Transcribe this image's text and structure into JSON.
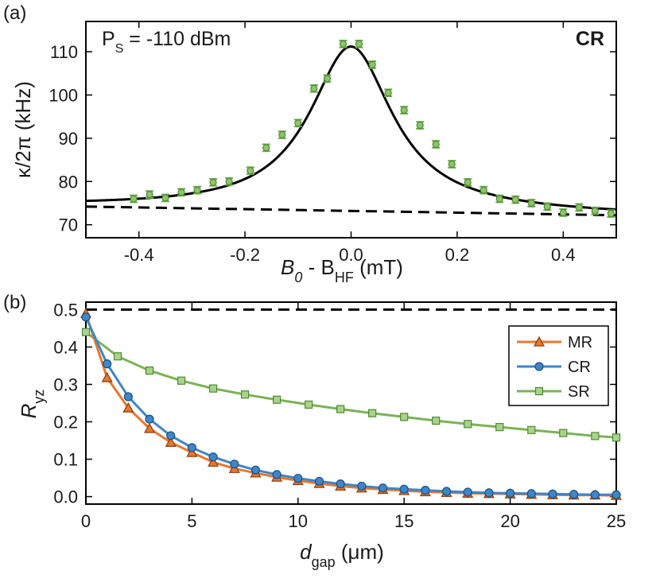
{
  "chart_data": [
    {
      "panel": "(a)",
      "type": "scatter",
      "annotation_left": "P",
      "annotation_left_sub": "S",
      "annotation_left_rest": " = -110 dBm",
      "annotation_right": "CR",
      "xlabel_main": "B",
      "xlabel_main_sub": "0",
      "xlabel_mid": " - B",
      "xlabel_mid_sub": "HF",
      "xlabel_unit": " (mT)",
      "ylabel": "κ/2π (kHz)",
      "xlim": [
        -0.5,
        0.5
      ],
      "ylim": [
        67,
        117
      ],
      "xticks": [
        -0.4,
        -0.2,
        0.0,
        0.2,
        0.4
      ],
      "xtick_labels": [
        "-0.4",
        "-0.2",
        "0.0",
        "0.2",
        "0.4"
      ],
      "yticks": [
        70,
        80,
        90,
        100,
        110
      ],
      "ytick_labels": [
        "70",
        "80",
        "90",
        "100",
        "110"
      ],
      "points": {
        "color": "#6aaa4a",
        "x": [
          -0.41,
          -0.38,
          -0.35,
          -0.32,
          -0.29,
          -0.26,
          -0.23,
          -0.19,
          -0.16,
          -0.13,
          -0.1,
          -0.07,
          -0.045,
          -0.015,
          0.015,
          0.04,
          0.07,
          0.1,
          0.13,
          0.16,
          0.19,
          0.22,
          0.25,
          0.28,
          0.31,
          0.34,
          0.37,
          0.4,
          0.43,
          0.46,
          0.49
        ],
        "y": [
          76.0,
          77.0,
          76.2,
          77.5,
          78.0,
          79.8,
          80.0,
          82.5,
          87.8,
          90.8,
          93.5,
          101.5,
          103.8,
          111.8,
          111.8,
          107.0,
          100.5,
          96.5,
          93.0,
          88.6,
          84.0,
          79.8,
          78.0,
          76.0,
          75.8,
          75.0,
          74.2,
          72.8,
          74.0,
          73.2,
          72.6
        ],
        "err": [
          0.8,
          0.8,
          0.8,
          0.8,
          0.8,
          0.8,
          0.8,
          0.8,
          0.8,
          0.8,
          0.8,
          0.8,
          0.8,
          0.8,
          0.8,
          0.8,
          0.8,
          0.8,
          0.8,
          0.8,
          0.8,
          0.8,
          0.8,
          0.8,
          0.8,
          0.8,
          0.8,
          0.8,
          0.8,
          0.8,
          0.8
        ]
      },
      "fit_lorentzian": {
        "baseline_at_xmin": 74.2,
        "baseline_at_xmax": 72.2,
        "amplitude": 38.0,
        "half_width": 0.095,
        "color": "#000000"
      },
      "background_line": {
        "style": "dashed",
        "y_at_xmin": 74.2,
        "y_at_xmax": 72.2,
        "color": "#000000"
      }
    },
    {
      "panel": "(b)",
      "type": "line",
      "xlabel_main": "d",
      "xlabel_sub": "gap",
      "xlabel_unit": " (μm)",
      "ylabel_main": "R",
      "ylabel_sub": "yz",
      "xlim": [
        0,
        25
      ],
      "ylim": [
        -0.02,
        0.52
      ],
      "xticks": [
        0,
        5,
        10,
        15,
        20,
        25
      ],
      "xtick_labels": [
        "0",
        "5",
        "10",
        "15",
        "20",
        "25"
      ],
      "yticks": [
        0.0,
        0.1,
        0.2,
        0.3,
        0.4,
        0.5
      ],
      "ytick_labels": [
        "0.0",
        "0.1",
        "0.2",
        "0.3",
        "0.4",
        "0.5"
      ],
      "reference_line": {
        "style": "dashed",
        "y": 0.5,
        "color": "#000000"
      },
      "legend_position": "top-right",
      "series": [
        {
          "name": "MR",
          "color": "#e8772e",
          "marker": "triangle",
          "x": [
            0,
            1,
            2,
            3,
            4,
            5,
            6,
            7,
            8,
            9,
            10,
            11,
            12,
            13,
            14,
            15,
            16,
            17,
            18,
            19,
            20,
            21,
            22,
            23,
            24,
            25
          ],
          "y": [
            0.49,
            0.318,
            0.237,
            0.182,
            0.145,
            0.118,
            0.092,
            0.075,
            0.063,
            0.052,
            0.043,
            0.035,
            0.028,
            0.023,
            0.019,
            0.016,
            0.013,
            0.011,
            0.009,
            0.008,
            0.007,
            0.006,
            0.005,
            0.004,
            0.004,
            0.003
          ]
        },
        {
          "name": "CR",
          "color": "#3f86c8",
          "marker": "circle",
          "x": [
            0,
            1,
            2,
            3,
            4,
            5,
            6,
            7,
            8,
            9,
            10,
            11,
            12,
            13,
            14,
            15,
            16,
            17,
            18,
            19,
            20,
            21,
            22,
            23,
            24,
            25
          ],
          "y": [
            0.48,
            0.355,
            0.267,
            0.207,
            0.163,
            0.131,
            0.106,
            0.087,
            0.071,
            0.059,
            0.049,
            0.041,
            0.034,
            0.028,
            0.023,
            0.02,
            0.017,
            0.014,
            0.012,
            0.01,
            0.009,
            0.008,
            0.007,
            0.006,
            0.005,
            0.005
          ]
        },
        {
          "name": "SR",
          "color": "#7ab356",
          "marker": "square",
          "x": [
            0,
            1.5,
            3,
            4.5,
            6,
            7.5,
            9,
            10.5,
            12,
            13.5,
            15,
            16.5,
            18,
            19.5,
            21,
            22.5,
            24,
            25
          ],
          "y": [
            0.44,
            0.375,
            0.337,
            0.31,
            0.289,
            0.273,
            0.259,
            0.246,
            0.234,
            0.223,
            0.213,
            0.203,
            0.194,
            0.186,
            0.178,
            0.17,
            0.162,
            0.158
          ]
        }
      ]
    }
  ]
}
